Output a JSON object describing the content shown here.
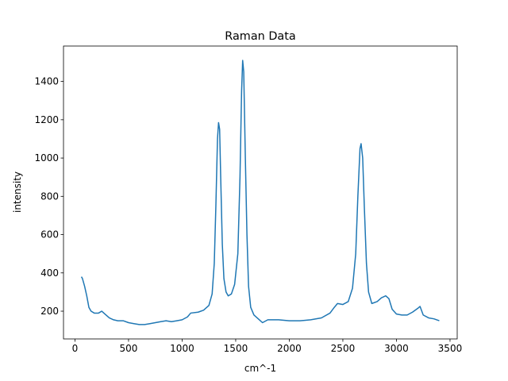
{
  "chart_data": {
    "type": "line",
    "title": "Raman Data",
    "x_label": "cm^-1",
    "y_label": "intensity",
    "xlim": [
      -107,
      3567
    ],
    "ylim": [
      55,
      1585
    ],
    "xticks": [
      0,
      500,
      1000,
      1500,
      2000,
      2500,
      3000,
      3500
    ],
    "yticks": [
      200,
      400,
      600,
      800,
      1000,
      1200,
      1400
    ],
    "series": [
      {
        "color": "#1f77b4",
        "x": [
          60,
          70,
          90,
          110,
          130,
          150,
          180,
          220,
          250,
          280,
          320,
          360,
          400,
          450,
          500,
          550,
          600,
          650,
          700,
          750,
          800,
          850,
          900,
          950,
          1000,
          1050,
          1080,
          1150,
          1200,
          1250,
          1280,
          1300,
          1315,
          1330,
          1340,
          1350,
          1360,
          1375,
          1390,
          1410,
          1430,
          1460,
          1490,
          1520,
          1540,
          1555,
          1565,
          1575,
          1590,
          1605,
          1620,
          1640,
          1670,
          1700,
          1730,
          1750,
          1800,
          1900,
          2000,
          2100,
          2200,
          2300,
          2380,
          2420,
          2450,
          2500,
          2550,
          2590,
          2620,
          2640,
          2660,
          2670,
          2685,
          2700,
          2720,
          2740,
          2770,
          2820,
          2860,
          2900,
          2930,
          2960,
          3000,
          3050,
          3100,
          3150,
          3200,
          3220,
          3250,
          3300,
          3350,
          3400
        ],
        "values": [
          380,
          370,
          330,
          280,
          220,
          200,
          190,
          190,
          200,
          185,
          165,
          155,
          150,
          150,
          140,
          135,
          130,
          130,
          135,
          140,
          145,
          150,
          145,
          150,
          155,
          170,
          190,
          195,
          205,
          230,
          290,
          450,
          750,
          1100,
          1185,
          1150,
          900,
          550,
          370,
          300,
          280,
          290,
          340,
          500,
          900,
          1350,
          1510,
          1450,
          1000,
          600,
          330,
          220,
          180,
          165,
          150,
          140,
          155,
          155,
          150,
          150,
          155,
          165,
          190,
          220,
          240,
          235,
          250,
          320,
          500,
          800,
          1050,
          1075,
          1000,
          750,
          450,
          300,
          240,
          250,
          270,
          280,
          265,
          210,
          185,
          180,
          180,
          195,
          215,
          225,
          180,
          165,
          160,
          150
        ]
      }
    ]
  }
}
